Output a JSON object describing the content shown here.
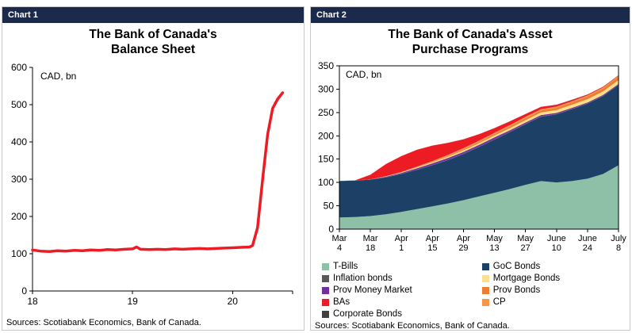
{
  "chart1": {
    "header": "Chart 1",
    "title_line1": "The Bank of Canada's",
    "title_line2": "Balance Sheet",
    "axis_label": "CAD, bn",
    "source": "Sources: Scotiabank Economics, Bank of Canada."
  },
  "chart2": {
    "header": "Chart 2",
    "title_line1": "The Bank of Canada's Asset",
    "title_line2": "Purchase Programs",
    "axis_label": "CAD, bn",
    "source": "Sources: Scotiabank Economics, Bank of Canada."
  },
  "colors": {
    "header_bar": "#1b2a4a",
    "line_red": "#ed1c24"
  },
  "chart_data": [
    {
      "type": "line",
      "title": "The Bank of Canada's Balance Sheet",
      "ylabel": "CAD, bn",
      "ylim": [
        0,
        600
      ],
      "yticks": [
        0,
        100,
        200,
        300,
        400,
        500,
        600
      ],
      "xlim": [
        18,
        20.6
      ],
      "xticks": [
        {
          "v": 18,
          "label": "18"
        },
        {
          "v": 19,
          "label": "19"
        },
        {
          "v": 20,
          "label": "20"
        },
        {
          "v": 20.6,
          "label": ""
        }
      ],
      "color": "#ed1c24",
      "x": [
        18.0,
        18.08,
        18.17,
        18.25,
        18.33,
        18.42,
        18.5,
        18.58,
        18.67,
        18.75,
        18.83,
        18.92,
        19.0,
        19.04,
        19.08,
        19.17,
        19.25,
        19.33,
        19.42,
        19.5,
        19.58,
        19.67,
        19.75,
        19.83,
        19.92,
        20.0,
        20.08,
        20.17,
        20.2,
        20.25,
        20.3,
        20.35,
        20.4,
        20.45,
        20.5
      ],
      "y": [
        110,
        107,
        106,
        108,
        107,
        109,
        108,
        110,
        109,
        111,
        110,
        112,
        113,
        118,
        112,
        111,
        112,
        111,
        113,
        112,
        113,
        114,
        113,
        114,
        115,
        116,
        117,
        118,
        122,
        170,
        300,
        420,
        490,
        515,
        532
      ]
    },
    {
      "type": "area",
      "stacked": true,
      "title": "The Bank of Canada's Asset Purchase Programs",
      "ylabel": "CAD, bn",
      "ylim": [
        0,
        350
      ],
      "yticks": [
        0,
        50,
        100,
        150,
        200,
        250,
        300,
        350
      ],
      "x_labels": [
        "Mar 4",
        "",
        "Mar 18",
        "",
        "Apr 1",
        "",
        "Apr 15",
        "",
        "Apr 29",
        "",
        "May 13",
        "",
        "May 27",
        "",
        "June 10",
        "",
        "June 24",
        "",
        "July 8"
      ],
      "series": [
        {
          "name": "T-Bills",
          "color": "#8ec0a8",
          "values": [
            25,
            26,
            28,
            32,
            37,
            43,
            49,
            55,
            62,
            70,
            78,
            86,
            95,
            103,
            100,
            103,
            108,
            118,
            137
          ]
        },
        {
          "name": "GoC Bonds",
          "color": "#1d4066",
          "values": [
            78,
            78,
            78,
            79,
            81,
            84,
            88,
            93,
            99,
            106,
            114,
            122,
            130,
            138,
            146,
            154,
            161,
            167,
            172
          ]
        },
        {
          "name": "Inflation bonds",
          "color": "#595959",
          "values": [
            0.5,
            0.5,
            0.5,
            0.5,
            0.5,
            0.5,
            0.5,
            0.5,
            0.5,
            0.5,
            0.5,
            0.5,
            0.5,
            0.5,
            0.5,
            0.5,
            0.5,
            0.5,
            0.5
          ]
        },
        {
          "name": "Prov Money Market",
          "color": "#7030a0",
          "values": [
            0,
            0,
            0,
            1,
            2,
            3,
            3.5,
            4,
            4,
            4,
            4,
            3.5,
            3,
            3,
            2.5,
            2.5,
            2,
            2,
            2
          ]
        },
        {
          "name": "Mortgage Bonds",
          "color": "#ffe08a",
          "values": [
            0,
            0,
            0,
            0.5,
            1,
            1.5,
            2,
            2.5,
            3,
            3.5,
            4,
            4.5,
            5,
            5.5,
            6,
            6.5,
            7,
            7.5,
            8
          ]
        },
        {
          "name": "Prov Bonds",
          "color": "#ed7d31",
          "values": [
            0,
            0,
            0,
            0,
            0,
            0.5,
            1,
            1.5,
            2,
            2.5,
            3,
            3.5,
            4,
            4.5,
            5,
            5.5,
            6,
            6.5,
            7
          ]
        },
        {
          "name": "CP",
          "color": "#f79646",
          "values": [
            0,
            0,
            0,
            0.5,
            1,
            1.5,
            2,
            2.5,
            3,
            3,
            3,
            3,
            3,
            2.5,
            2.5,
            2,
            2,
            2,
            2
          ]
        },
        {
          "name": "BAs",
          "color": "#ed1c24",
          "values": [
            0,
            0,
            10,
            26,
            34,
            36,
            33,
            26,
            19,
            14,
            10,
            8,
            6,
            5,
            4,
            3,
            2,
            1.5,
            1
          ]
        },
        {
          "name": "Corporate Bonds",
          "color": "#404040",
          "values": [
            0,
            0,
            0,
            0,
            0,
            0,
            0.1,
            0.1,
            0.1,
            0.1,
            0.2,
            0.2,
            0.2,
            0.2,
            0.2,
            0.2,
            0.2,
            0.2,
            0.2
          ]
        }
      ],
      "legend": {
        "left": [
          "T-Bills",
          "Inflation bonds",
          "Prov Money Market",
          "BAs",
          "Corporate Bonds"
        ],
        "right": [
          "GoC Bonds",
          "Mortgage Bonds",
          "Prov Bonds",
          "CP"
        ]
      }
    }
  ]
}
